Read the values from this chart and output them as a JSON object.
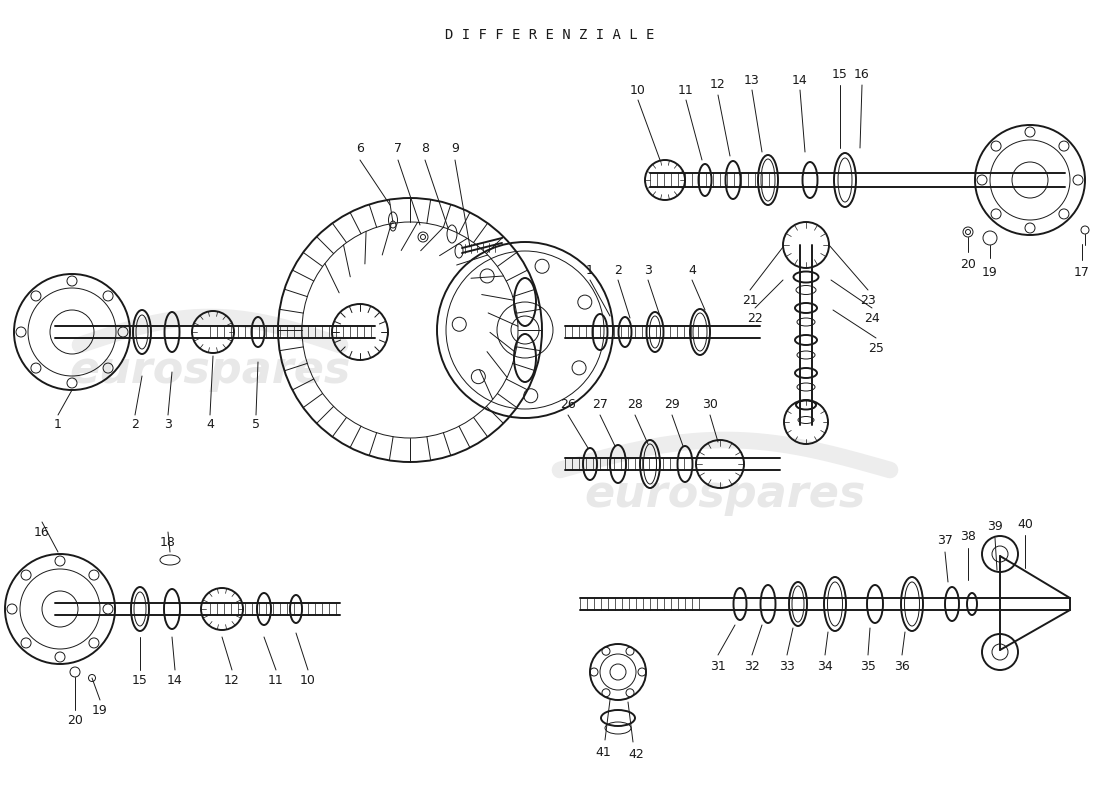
{
  "title": "DIFFERENZIALE",
  "background_color": "#ffffff",
  "drawing_color": "#1a1a1a",
  "watermark_color": "#cccccc",
  "watermark_text": "eurospares",
  "fig_width": 11.0,
  "fig_height": 8.0,
  "dpi": 100
}
